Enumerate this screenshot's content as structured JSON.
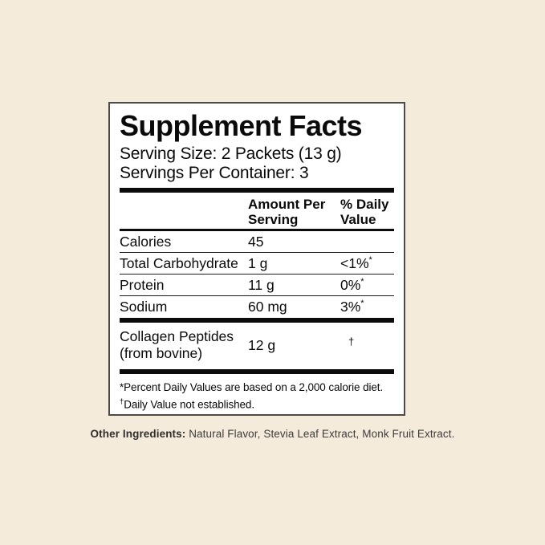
{
  "colors": {
    "page_background": "#F5EBDB",
    "panel_background": "#FFFFFF",
    "panel_border": "#4d4b46",
    "text": "#0a0a0a"
  },
  "panel": {
    "title": "Supplement Facts",
    "serving_size": "Serving Size: 2 Packets (13 g)",
    "servings_per_container": "Servings Per Container: 3",
    "header": {
      "amount": "Amount Per Serving",
      "daily_value": "% Daily Value"
    },
    "rows": [
      {
        "label": "Calories",
        "amount": "45",
        "dv": "",
        "dv_sup": ""
      },
      {
        "label": "Total Carbohydrate",
        "amount": "1 g",
        "dv": "<1%",
        "dv_sup": "*"
      },
      {
        "label": "Protein",
        "amount": "11 g",
        "dv": "0%",
        "dv_sup": "*"
      },
      {
        "label": "Sodium",
        "amount": "60 mg",
        "dv": "3%",
        "dv_sup": "*"
      }
    ],
    "collagen_row": {
      "label_line1": "Collagen Peptides",
      "label_line2": "(from bovine)",
      "amount": "12 g",
      "dv_symbol": "†"
    },
    "footnotes": {
      "line1": "*Percent Daily Values are based on a 2,000 calorie diet.",
      "line2_sup": "†",
      "line2_text": "Daily Value not established."
    }
  },
  "other_ingredients": {
    "label": "Other Ingredients:",
    "text": " Natural Flavor, Stevia Leaf Extract, Monk Fruit Extract."
  }
}
